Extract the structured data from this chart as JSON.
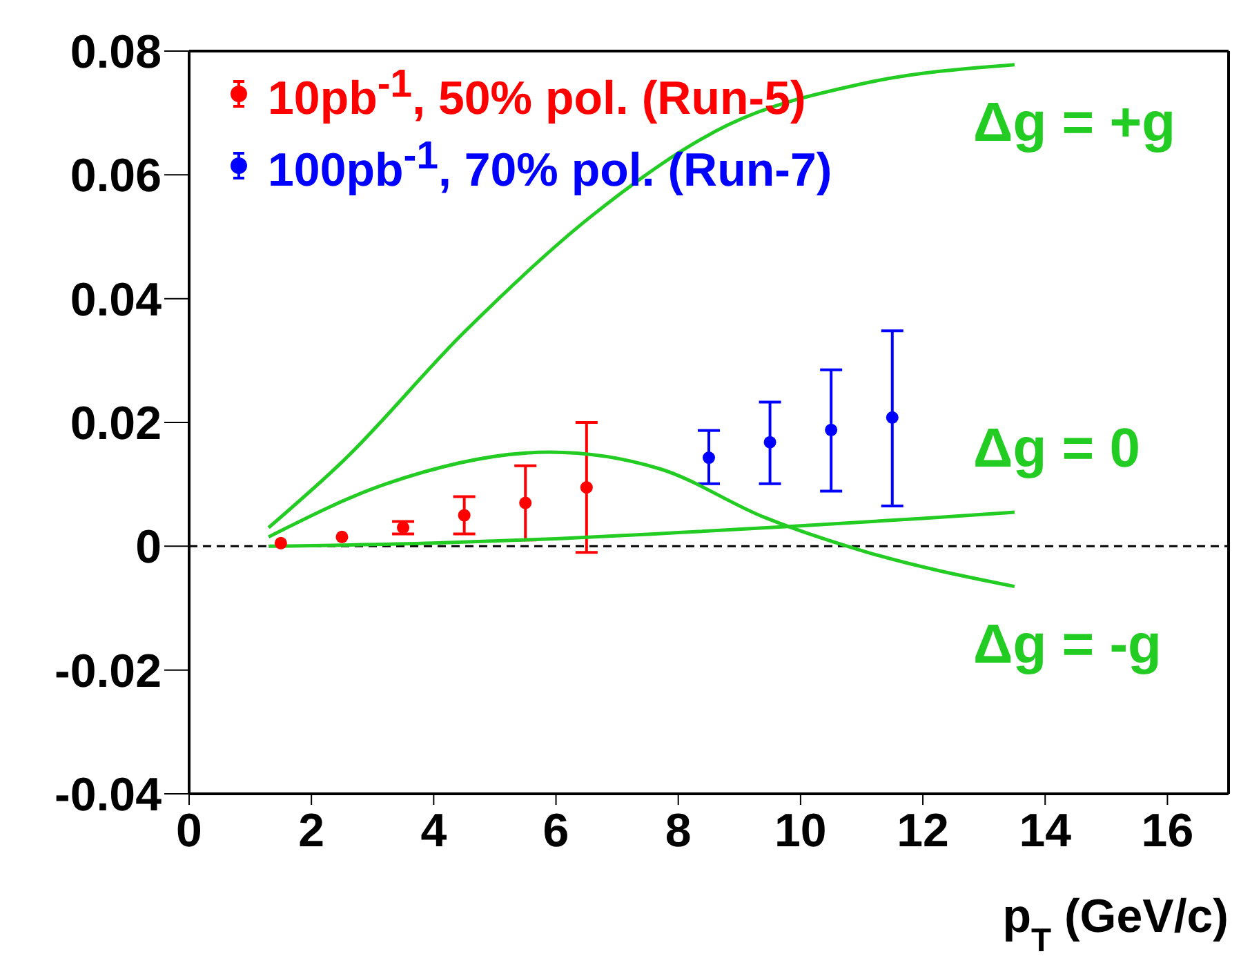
{
  "chart_data": {
    "type": "scatter",
    "xlabel": "p$_{T}$ (GeV/c)",
    "xlim": [
      0,
      17
    ],
    "xticks": [
      0,
      2,
      4,
      6,
      8,
      10,
      12,
      14,
      16
    ],
    "ylim": [
      -0.04,
      0.08
    ],
    "yticks": [
      -0.04,
      -0.02,
      0,
      0.02,
      0.04,
      0.06,
      0.08
    ],
    "legend": "top left",
    "series": [
      {
        "name": "10pb$^{-1}$, 50% pol. (Run-5)",
        "color": "#ff0000",
        "marker": "circle",
        "x": [
          1.5,
          2.5,
          3.5,
          4.5,
          5.5,
          6.5
        ],
        "values": [
          0.0005,
          0.0015,
          0.003,
          0.005,
          0.007,
          0.0095
        ],
        "errors": [
          null,
          null,
          [
            0.002,
            0.004
          ],
          [
            0.002,
            0.008
          ],
          [
            0.001,
            0.013
          ],
          [
            -0.001,
            0.02
          ]
        ]
      },
      {
        "name": "100pb$^{-1}$, 70% pol. (Run-7)",
        "color": "#0000ff",
        "marker": "circle",
        "x": [
          8.5,
          9.5,
          10.5,
          11.5
        ],
        "values": [
          0.0143,
          0.0168,
          0.0188,
          0.0208
        ],
        "errors": [
          [
            0.0101,
            0.0187
          ],
          [
            0.0101,
            0.0233
          ],
          [
            0.0089,
            0.0285
          ],
          [
            0.0065,
            0.0348
          ]
        ]
      },
      {
        "type": "line",
        "color": "#22cc22",
        "x": [
          1.3,
          2.5,
          4.5,
          6.6,
          8.8,
          11,
          13.5
        ],
        "values": [
          0.003,
          0.0136,
          0.0346,
          0.0535,
          0.068,
          0.0747,
          0.0778
        ]
      },
      {
        "type": "line",
        "color": "#22cc22",
        "x": [
          1.3,
          4,
          6,
          8,
          10,
          12,
          13.5
        ],
        "values": [
          0,
          0.0005,
          0.0012,
          0.0022,
          0.0033,
          0.0045,
          0.0055
        ]
      },
      {
        "type": "line",
        "color": "#22cc22",
        "x": [
          1.3,
          3.2,
          5.9,
          7.7,
          9.4,
          11.1,
          13.5
        ],
        "values": [
          0.0015,
          0.01,
          0.0152,
          0.0125,
          0.0047,
          -0.001,
          -0.0065
        ]
      }
    ],
    "annotations": [
      "Δg = +g",
      "Δg = 0",
      "Δg = -g"
    ],
    "ref_lines": [
      {
        "axis": "y",
        "value": 0,
        "color": "#000000",
        "line_style": "dashed"
      }
    ]
  }
}
